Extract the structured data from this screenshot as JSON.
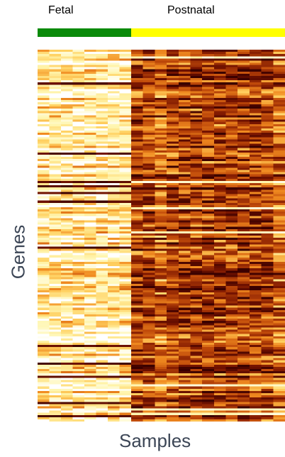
{
  "chart_data": {
    "type": "heatmap",
    "title": "",
    "xlabel": "Samples",
    "ylabel": "Genes",
    "groups": [
      {
        "name": "Fetal",
        "color": "#0a8a0a",
        "n_samples": 8,
        "mean_level": 0.2
      },
      {
        "name": "Postnatal",
        "color": "#ffff00",
        "n_samples": 13,
        "mean_level": 0.72
      }
    ],
    "n_genes": 170,
    "colormap": [
      "#ffffff",
      "#fff6b0",
      "#ffd060",
      "#f08a20",
      "#c04a0a",
      "#7a1500",
      "#3a0000"
    ],
    "legend": "none"
  }
}
